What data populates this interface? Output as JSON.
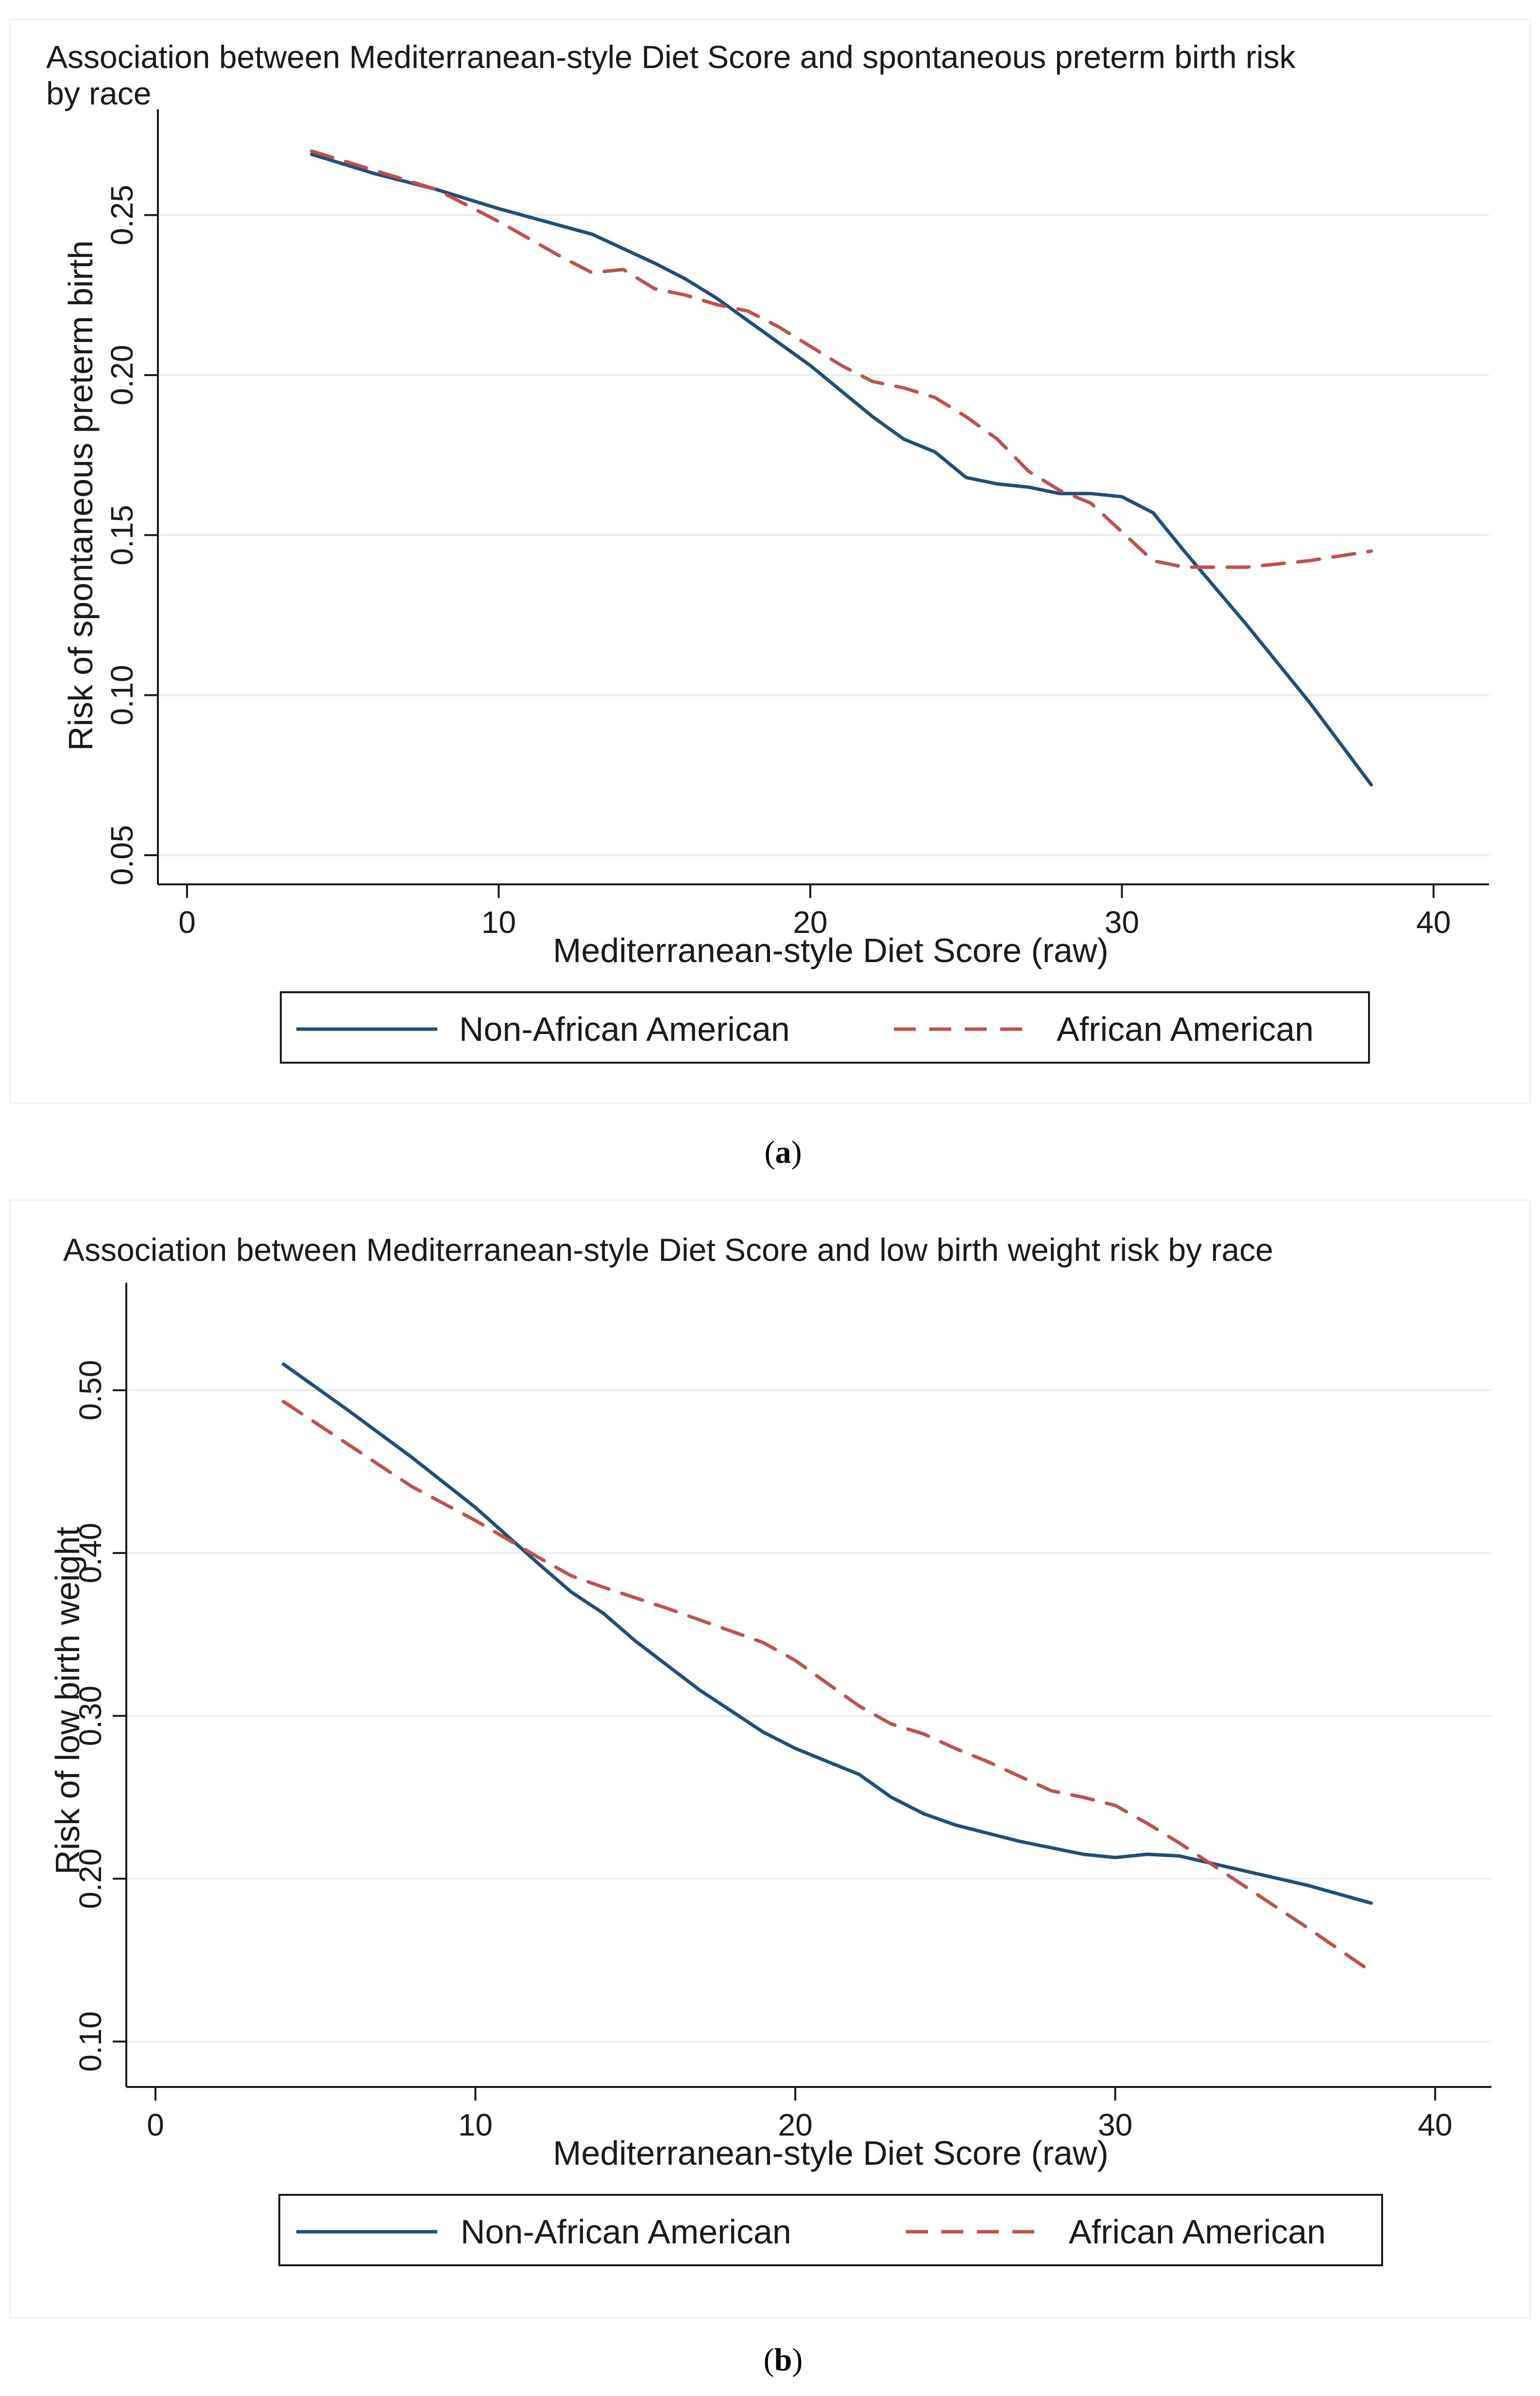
{
  "chart_data": [
    {
      "type": "line",
      "title": "Association between Mediterranean-style Diet Score and spontaneous preterm birth risk by race",
      "title_lines": [
        "Association between Mediterranean-style Diet Score and spontaneous preterm birth risk",
        "by race"
      ],
      "xlabel": "Mediterranean-style Diet Score (raw)",
      "ylabel": "Risk of spontaneous preterm birth",
      "xlim": [
        0,
        41
      ],
      "ylim": [
        0.05,
        0.28
      ],
      "xticks": [
        0,
        10,
        20,
        30,
        40
      ],
      "xtick_labels": [
        "0",
        "10",
        "20",
        "30",
        "40"
      ],
      "yticks": [
        0.05,
        0.1,
        0.15,
        0.2,
        0.25
      ],
      "ytick_labels": [
        "0.05",
        "0.10",
        "0.15",
        "0.20",
        "0.25"
      ],
      "grid": true,
      "legend_position": "bottom",
      "caption": "a",
      "series": [
        {
          "name": "Non-African American",
          "color": "#1f4e79",
          "style": "solid",
          "x": [
            4,
            6,
            8,
            10,
            13,
            15,
            16,
            17,
            18,
            19,
            20,
            21,
            22,
            23,
            24,
            25,
            26,
            27,
            28,
            29,
            30,
            31,
            32,
            34,
            36,
            38
          ],
          "y": [
            0.269,
            0.263,
            0.258,
            0.252,
            0.244,
            0.235,
            0.23,
            0.224,
            0.217,
            0.21,
            0.203,
            0.195,
            0.187,
            0.18,
            0.176,
            0.168,
            0.166,
            0.165,
            0.163,
            0.163,
            0.162,
            0.157,
            0.145,
            0.122,
            0.098,
            0.072
          ]
        },
        {
          "name": "African American",
          "color": "#c0504d",
          "style": "dashed",
          "x": [
            4,
            6,
            8,
            10,
            12,
            13,
            14,
            15,
            16,
            17,
            18,
            19,
            20,
            21,
            22,
            23,
            24,
            25,
            26,
            27,
            28,
            29,
            30,
            31,
            32,
            33,
            34,
            36,
            38
          ],
          "y": [
            0.27,
            0.264,
            0.258,
            0.248,
            0.237,
            0.232,
            0.233,
            0.227,
            0.225,
            0.222,
            0.22,
            0.215,
            0.209,
            0.203,
            0.198,
            0.196,
            0.193,
            0.187,
            0.18,
            0.17,
            0.164,
            0.16,
            0.151,
            0.142,
            0.14,
            0.14,
            0.14,
            0.142,
            0.145
          ]
        }
      ]
    },
    {
      "type": "line",
      "title": "Association between Mediterranean-style Diet Score and low birth weight risk by race",
      "title_lines": [
        "Association between Mediterranean-style Diet Score and low birth weight risk by race"
      ],
      "xlabel": "Mediterranean-style Diet Score (raw)",
      "ylabel": "Risk of low birth weight",
      "xlim": [
        0,
        41
      ],
      "ylim": [
        0.09,
        0.56
      ],
      "xticks": [
        0,
        10,
        20,
        30,
        40
      ],
      "xtick_labels": [
        "0",
        "10",
        "20",
        "30",
        "40"
      ],
      "yticks": [
        0.1,
        0.2,
        0.3,
        0.4,
        0.5
      ],
      "ytick_labels": [
        "0.10",
        "0.20",
        "0.30",
        "0.40",
        "0.50"
      ],
      "grid": true,
      "legend_position": "bottom",
      "caption": "b",
      "series": [
        {
          "name": "Non-African American",
          "color": "#1f4e79",
          "style": "solid",
          "x": [
            4,
            6,
            8,
            10,
            12,
            13,
            14,
            15,
            16,
            17,
            18,
            19,
            20,
            21,
            22,
            23,
            24,
            25,
            26,
            27,
            28,
            29,
            30,
            31,
            32,
            34,
            36,
            38
          ],
          "y": [
            0.516,
            0.488,
            0.459,
            0.428,
            0.393,
            0.376,
            0.363,
            0.346,
            0.331,
            0.316,
            0.303,
            0.29,
            0.28,
            0.272,
            0.264,
            0.25,
            0.24,
            0.233,
            0.228,
            0.223,
            0.219,
            0.215,
            0.213,
            0.215,
            0.214,
            0.205,
            0.196,
            0.185
          ]
        },
        {
          "name": "African American",
          "color": "#c0504d",
          "style": "dashed",
          "x": [
            4,
            6,
            8,
            10,
            12,
            13,
            14,
            16,
            18,
            19,
            20,
            21,
            22,
            23,
            24,
            25,
            26,
            27,
            28,
            29,
            30,
            31,
            32,
            34,
            36,
            38
          ],
          "y": [
            0.493,
            0.467,
            0.441,
            0.42,
            0.397,
            0.386,
            0.379,
            0.366,
            0.352,
            0.345,
            0.334,
            0.32,
            0.306,
            0.295,
            0.289,
            0.28,
            0.272,
            0.263,
            0.254,
            0.25,
            0.245,
            0.234,
            0.222,
            0.196,
            0.17,
            0.143
          ]
        }
      ]
    }
  ]
}
